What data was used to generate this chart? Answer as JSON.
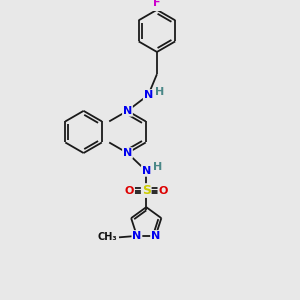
{
  "bg_color": "#e8e8e8",
  "bond_color": "#1a1a1a",
  "bond_width": 1.3,
  "dbl_sep": 0.06,
  "atom_colors": {
    "C": "#111111",
    "N": "#0000ee",
    "O": "#dd0000",
    "S": "#cccc00",
    "F": "#cc00cc",
    "H": "#4a8888"
  },
  "fs": 8.0,
  "figsize": [
    3.0,
    3.0
  ],
  "dpi": 100,
  "xlim": [
    0,
    10
  ],
  "ylim": [
    0,
    10
  ]
}
